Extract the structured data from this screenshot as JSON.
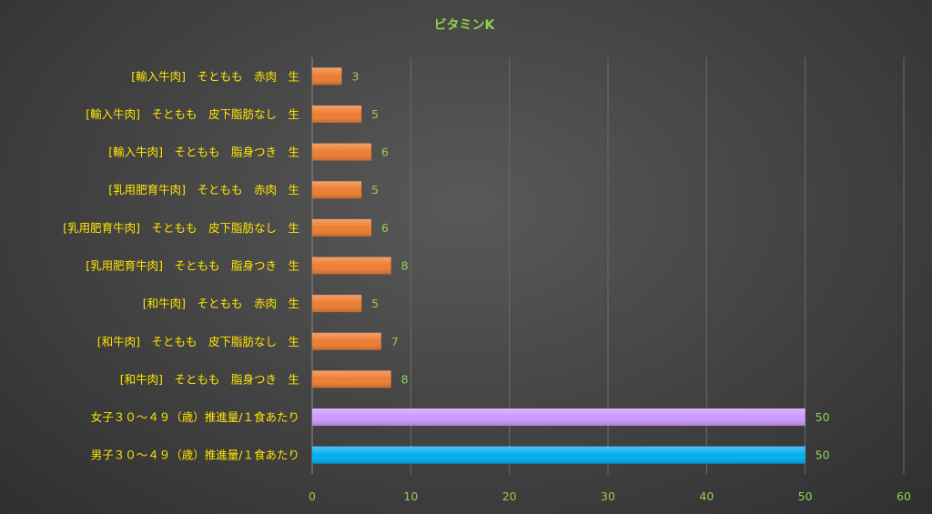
{
  "chart_data": {
    "type": "bar",
    "orientation": "horizontal",
    "title": "ビタミンK",
    "categories": [
      "[輸入牛肉]　そともも　赤肉　生",
      "[輸入牛肉]　そともも　皮下脂肪なし　生",
      "[輸入牛肉]　そともも　脂身つき　生",
      "[乳用肥育牛肉]　そともも　赤肉　生",
      "[乳用肥育牛肉]　そともも　皮下脂肪なし　生",
      "[乳用肥育牛肉]　そともも　脂身つき　生",
      "[和牛肉]　そともも　赤肉　生",
      "[和牛肉]　そともも　皮下脂肪なし　生",
      "[和牛肉]　そともも　脂身つき　生",
      "女子３０～４９（歳）推進量/１食あたり",
      "男子３０～４９（歳）推進量/１食あたり"
    ],
    "values": [
      3,
      5,
      6,
      5,
      6,
      8,
      5,
      7,
      8,
      50,
      50
    ],
    "bar_colors": [
      "#ed7d31",
      "#ed7d31",
      "#ed7d31",
      "#ed7d31",
      "#ed7d31",
      "#ed7d31",
      "#ed7d31",
      "#ed7d31",
      "#ed7d31",
      "#cc99ff",
      "#00b0f0"
    ],
    "xlim": [
      0,
      60
    ],
    "xticks": [
      0,
      10,
      20,
      30,
      40,
      50,
      60
    ],
    "xlabel": "",
    "ylabel": "",
    "grid": true,
    "legend": "none",
    "data_labels": true
  }
}
